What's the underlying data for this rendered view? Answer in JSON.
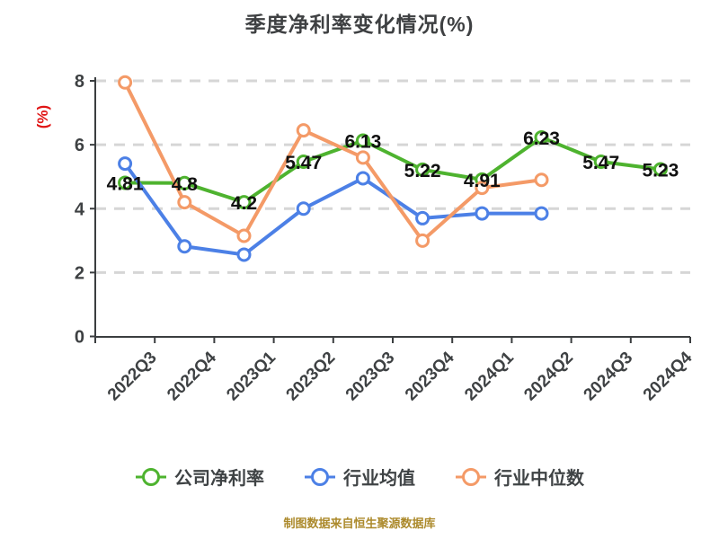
{
  "title": "季度净利率变化情况(%)",
  "y_axis": {
    "unit_label": "(%)"
  },
  "footer": "制图数据来自恒生聚源数据库",
  "colors": {
    "title_text": "#3e4042",
    "axis_text": "#3e4143",
    "axis_line": "#3b3e40",
    "gridline": "#d6d6d6",
    "unit_label": "#e01515",
    "point_label": "#111111",
    "footer_text": "#ac8a2c",
    "marker_fill": "#ffffff"
  },
  "chart_data": {
    "type": "line",
    "title": "季度净利率变化情况(%)",
    "xlabel": "",
    "ylabel": "(%)",
    "ylim": [
      0,
      8
    ],
    "yticks": [
      0,
      2,
      4,
      6,
      8
    ],
    "grid": "horizontal-dashed",
    "legend_position": "bottom",
    "categories": [
      "2022Q3",
      "2022Q4",
      "2023Q1",
      "2023Q2",
      "2023Q3",
      "2023Q4",
      "2024Q1",
      "2024Q2",
      "2024Q3",
      "2024Q4"
    ],
    "series": [
      {
        "name": "公司净利率",
        "color": "#4eb32f",
        "values": [
          4.81,
          4.8,
          4.2,
          5.47,
          6.13,
          5.22,
          4.91,
          6.23,
          5.47,
          5.23
        ],
        "point_labels": [
          "4.81",
          "4.8",
          "4.2",
          "5.47",
          "6.13",
          "5.22",
          "4.91",
          "6.23",
          "5.47",
          "5.23"
        ]
      },
      {
        "name": "行业均值",
        "color": "#4c80e6",
        "values": [
          5.41,
          2.82,
          2.56,
          4.0,
          4.95,
          3.7,
          3.85,
          3.85
        ]
      },
      {
        "name": "行业中位数",
        "color": "#f49a67",
        "values": [
          7.95,
          4.2,
          3.15,
          6.45,
          5.6,
          3.0,
          4.65,
          4.9
        ]
      }
    ]
  }
}
